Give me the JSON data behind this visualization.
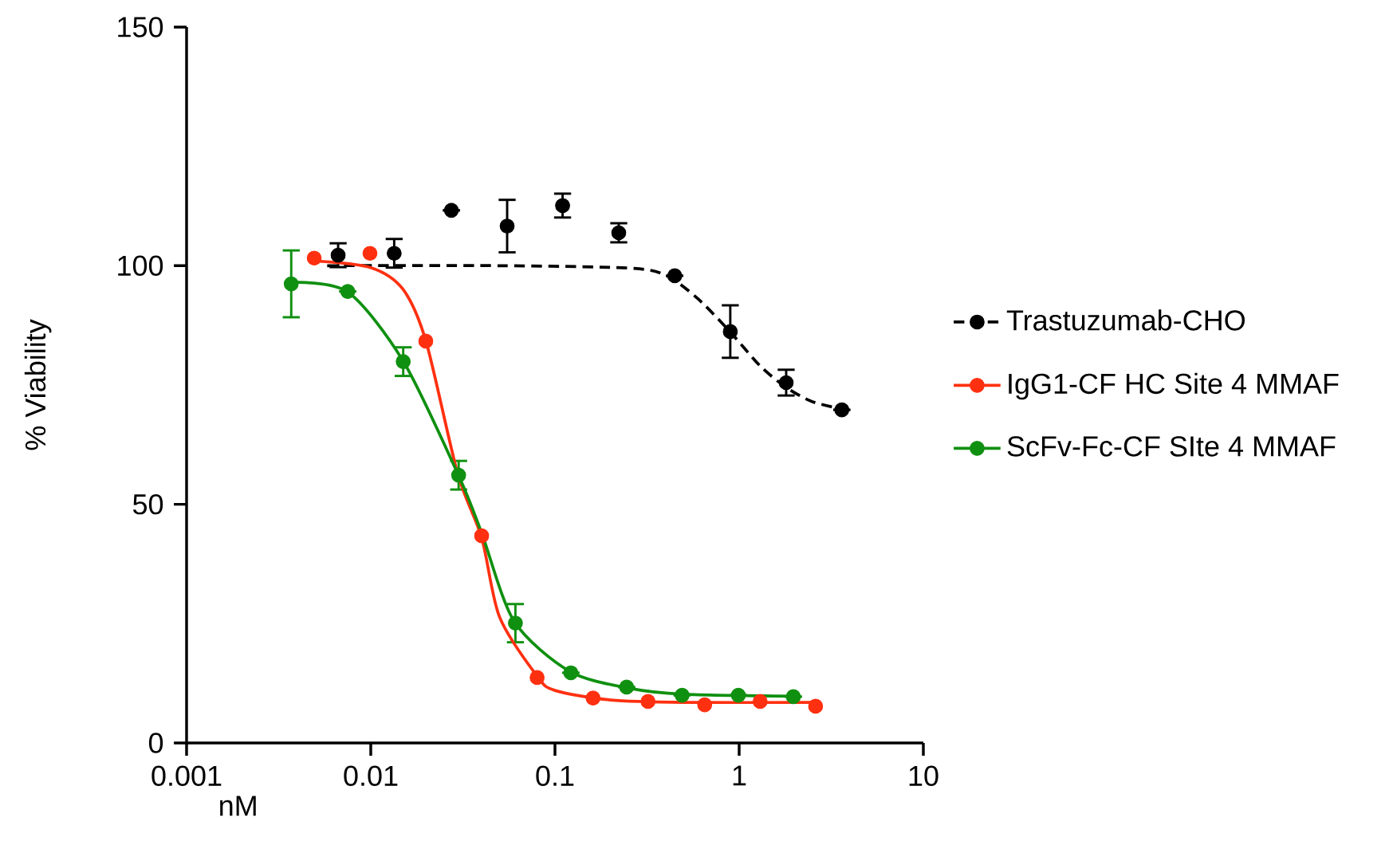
{
  "chart_data": {
    "type": "scatter",
    "xlabel": "nM",
    "ylabel": "% Viability",
    "log": "x",
    "xlim": [
      0.001,
      10
    ],
    "ylim": [
      0,
      150
    ],
    "xticks": [
      0.001,
      0.01,
      0.1,
      1,
      10
    ],
    "yticks": [
      0,
      50,
      100,
      150
    ],
    "grid": false,
    "legend": "right",
    "marker": "circle",
    "series": [
      {
        "name": "Trastuzumab-CHO",
        "color": "#000000",
        "line_style": "dashed",
        "x": [
          0.00665,
          0.0134,
          0.0274,
          0.055,
          0.11,
          0.222,
          0.447,
          0.895,
          1.8,
          3.61
        ],
        "values": [
          102.2,
          102.6,
          111.6,
          108.3,
          112.6,
          106.9,
          97.9,
          86.2,
          75.5,
          69.8
        ],
        "errors": [
          2.5,
          3,
          null,
          5.5,
          2.5,
          2,
          null,
          5.5,
          2.7,
          null
        ]
      },
      {
        "name": "IgG1-CF HC Site 4 MMAF",
        "color": "#ff3010",
        "line_style": "solid",
        "x": [
          0.00493,
          0.0099,
          0.0199,
          0.04,
          0.08,
          0.161,
          0.32,
          0.65,
          1.3,
          2.6
        ],
        "values": [
          101.6,
          102.6,
          84.2,
          43.4,
          13.7,
          9.4,
          8.7,
          8.0,
          8.7,
          7.7
        ]
      },
      {
        "name": "ScFv-Fc-CF SIte 4 MMAF",
        "color": "#109010",
        "line_style": "solid",
        "x": [
          0.0037,
          0.0075,
          0.015,
          0.03,
          0.061,
          0.122,
          0.245,
          0.49,
          0.99,
          1.97
        ],
        "values": [
          96.2,
          94.6,
          79.9,
          56.1,
          25.1,
          14.7,
          11.7,
          10.0,
          10.0,
          9.7
        ],
        "errors": [
          7,
          null,
          3,
          3,
          4,
          null,
          null,
          null,
          null,
          null
        ]
      },
      {
        "color": "#000000",
        "type": "line",
        "line_style": "dashed",
        "marker": "none",
        "x": [
          0.0058,
          0.05,
          0.25,
          0.4,
          0.6,
          0.9,
          1.3,
          1.8,
          2.5,
          3.6
        ],
        "values": [
          100,
          100,
          99.5,
          98,
          93,
          86,
          79,
          74.5,
          71.5,
          70
        ]
      },
      {
        "color": "#ff3010",
        "type": "line",
        "line_style": "solid",
        "marker": "none",
        "x": [
          0.005,
          0.01,
          0.015,
          0.02,
          0.0296,
          0.04,
          0.05,
          0.08,
          0.1,
          0.2,
          0.5,
          2.6
        ],
        "values": [
          101,
          99.6,
          95,
          84,
          56.5,
          43,
          26.4,
          14,
          11,
          9,
          8.5,
          8.5
        ]
      },
      {
        "color": "#109010",
        "type": "line",
        "line_style": "solid",
        "marker": "none",
        "x": [
          0.0037,
          0.0075,
          0.015,
          0.03,
          0.04,
          0.06,
          0.12,
          0.25,
          0.5,
          2
        ],
        "values": [
          96.5,
          94.5,
          80,
          56,
          44,
          25.5,
          15,
          11.5,
          10.2,
          9.8
        ]
      }
    ]
  }
}
